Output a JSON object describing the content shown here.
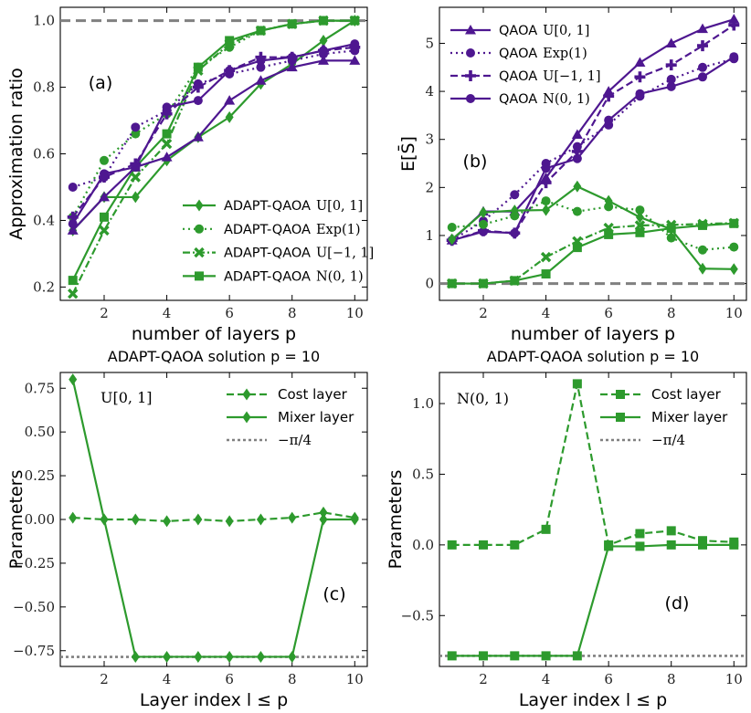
{
  "colors": {
    "green": "#2d9a2d",
    "purple": "#4e1790",
    "gray": "#808080"
  },
  "chart_data": [
    {
      "id": "a",
      "type": "line",
      "panel_label": "(a)",
      "title": "",
      "xlabel": "number of layers p",
      "ylabel": "Approximation ratio",
      "xlim": [
        0.6,
        10.4
      ],
      "ylim": [
        0.16,
        1.04
      ],
      "xticks": [
        2,
        4,
        6,
        8,
        10
      ],
      "xtick_labels": [
        "2",
        "4",
        "6",
        "8",
        "10"
      ],
      "yticks": [
        0.2,
        0.4,
        0.6,
        0.8,
        1.0
      ],
      "ytick_labels": [
        "0.2",
        "0.4",
        "0.6",
        "0.8",
        "1.0"
      ],
      "hlines": [
        {
          "y": 1.0,
          "style": "dashed",
          "color": "#808080"
        }
      ],
      "legend": {
        "position": "lower-right"
      },
      "series": [
        {
          "name": "ADAPT-QAOA",
          "dist": "U[0, 1]",
          "color": "#2d9a2d",
          "dash": "solid",
          "marker": "diamond",
          "legend": true,
          "x": [
            1,
            2,
            3,
            4,
            5,
            6,
            7,
            8,
            9,
            10
          ],
          "values": [
            0.37,
            0.47,
            0.47,
            0.58,
            0.65,
            0.71,
            0.81,
            0.87,
            0.94,
            1.0
          ]
        },
        {
          "name": "ADAPT-QAOA",
          "dist": "Exp(1)",
          "color": "#2d9a2d",
          "dash": "dotted",
          "marker": "circle",
          "legend": true,
          "x": [
            1,
            2,
            3,
            4,
            5,
            6,
            7,
            8,
            9,
            10
          ],
          "values": [
            0.41,
            0.58,
            0.66,
            0.72,
            0.86,
            0.92,
            0.97,
            0.99,
            1.0,
            1.0
          ]
        },
        {
          "name": "ADAPT-QAOA",
          "dist": "U[−1, 1]",
          "color": "#2d9a2d",
          "dash": "dashdot",
          "marker": "x",
          "legend": true,
          "x": [
            1,
            2,
            3,
            4,
            5,
            6,
            7,
            8,
            9,
            10
          ],
          "values": [
            0.18,
            0.37,
            0.53,
            0.63,
            0.85,
            0.93,
            0.97,
            0.99,
            1.0,
            1.0
          ]
        },
        {
          "name": "ADAPT-QAOA",
          "dist": "N(0, 1)",
          "color": "#2d9a2d",
          "dash": "solid",
          "marker": "square",
          "legend": true,
          "x": [
            1,
            2,
            3,
            4,
            5,
            6,
            7,
            8,
            9,
            10
          ],
          "values": [
            0.22,
            0.41,
            0.56,
            0.66,
            0.86,
            0.94,
            0.97,
            0.99,
            1.0,
            1.0
          ]
        },
        {
          "name": "QAOA",
          "dist": "U[0, 1]",
          "color": "#4e1790",
          "dash": "solid",
          "marker": "triangle",
          "legend": false,
          "x": [
            1,
            2,
            3,
            4,
            5,
            6,
            7,
            8,
            9,
            10
          ],
          "values": [
            0.37,
            0.47,
            0.56,
            0.59,
            0.65,
            0.76,
            0.82,
            0.86,
            0.88,
            0.88
          ]
        },
        {
          "name": "QAOA",
          "dist": "Exp(1)",
          "color": "#4e1790",
          "dash": "dotted",
          "marker": "circle",
          "legend": false,
          "x": [
            1,
            2,
            3,
            4,
            5,
            6,
            7,
            8,
            9,
            10
          ],
          "values": [
            0.5,
            0.53,
            0.68,
            0.73,
            0.81,
            0.84,
            0.86,
            0.88,
            0.9,
            0.91
          ]
        },
        {
          "name": "QAOA",
          "dist": "U[−1, 1]",
          "color": "#4e1790",
          "dash": "dashed",
          "marker": "plus",
          "legend": false,
          "x": [
            1,
            2,
            3,
            4,
            5,
            6,
            7,
            8,
            9,
            10
          ],
          "values": [
            0.41,
            0.53,
            0.57,
            0.72,
            0.8,
            0.85,
            0.89,
            0.89,
            0.91,
            0.92
          ]
        },
        {
          "name": "QAOA",
          "dist": "N(0, 1)",
          "color": "#4e1790",
          "dash": "solid",
          "marker": "circle",
          "legend": false,
          "x": [
            1,
            2,
            3,
            4,
            5,
            6,
            7,
            8,
            9,
            10
          ],
          "values": [
            0.39,
            0.54,
            0.56,
            0.74,
            0.76,
            0.85,
            0.88,
            0.89,
            0.91,
            0.93
          ]
        }
      ]
    },
    {
      "id": "b",
      "type": "line",
      "panel_label": "(b)",
      "title": "",
      "xlabel": "number of layers p",
      "ylabel": "E[S̄]",
      "xlim": [
        0.6,
        10.4
      ],
      "ylim": [
        -0.35,
        5.75
      ],
      "xticks": [
        2,
        4,
        6,
        8,
        10
      ],
      "xtick_labels": [
        "2",
        "4",
        "6",
        "8",
        "10"
      ],
      "yticks": [
        0,
        1,
        2,
        3,
        4,
        5
      ],
      "ytick_labels": [
        "0",
        "1",
        "2",
        "3",
        "4",
        "5"
      ],
      "hlines": [
        {
          "y": 0,
          "style": "dashed",
          "color": "#808080"
        }
      ],
      "legend": {
        "position": "top-left"
      },
      "series": [
        {
          "name": "QAOA",
          "dist": "U[0, 1]",
          "color": "#4e1790",
          "dash": "solid",
          "marker": "triangle",
          "legend": true,
          "x": [
            1,
            2,
            3,
            4,
            5,
            6,
            7,
            8,
            9,
            10
          ],
          "values": [
            0.9,
            1.5,
            1.5,
            2.2,
            3.1,
            4.0,
            4.6,
            5.0,
            5.3,
            5.5
          ]
        },
        {
          "name": "QAOA",
          "dist": "Exp(1)",
          "color": "#4e1790",
          "dash": "dotted",
          "marker": "circle",
          "legend": true,
          "x": [
            1,
            2,
            3,
            4,
            5,
            6,
            7,
            8,
            9,
            10
          ],
          "values": [
            0.9,
            1.3,
            1.85,
            2.5,
            2.85,
            3.3,
            3.9,
            4.25,
            4.5,
            4.68
          ]
        },
        {
          "name": "QAOA",
          "dist": "U[−1, 1]",
          "color": "#4e1790",
          "dash": "dashed",
          "marker": "plus",
          "legend": true,
          "x": [
            1,
            2,
            3,
            4,
            5,
            6,
            7,
            8,
            9,
            10
          ],
          "values": [
            0.9,
            1.1,
            1.05,
            2.1,
            2.75,
            3.9,
            4.3,
            4.55,
            4.95,
            5.38
          ]
        },
        {
          "name": "QAOA",
          "dist": "N(0, 1)",
          "color": "#4e1790",
          "dash": "solid",
          "marker": "circle",
          "legend": true,
          "x": [
            1,
            2,
            3,
            4,
            5,
            6,
            7,
            8,
            9,
            10
          ],
          "values": [
            0.9,
            1.08,
            1.05,
            2.4,
            2.6,
            3.4,
            3.95,
            4.1,
            4.3,
            4.72
          ]
        },
        {
          "name": "ADAPT-QAOA",
          "dist": "U[0, 1]",
          "color": "#2d9a2d",
          "dash": "solid",
          "marker": "diamond",
          "legend": false,
          "x": [
            1,
            2,
            3,
            4,
            5,
            6,
            7,
            8,
            9,
            10
          ],
          "values": [
            0.92,
            1.48,
            1.52,
            1.53,
            2.02,
            1.72,
            1.38,
            1.13,
            0.31,
            0.3
          ]
        },
        {
          "name": "ADAPT-QAOA",
          "dist": "Exp(1)",
          "color": "#2d9a2d",
          "dash": "dotted",
          "marker": "circle",
          "legend": false,
          "x": [
            1,
            2,
            3,
            4,
            5,
            6,
            7,
            8,
            9,
            10
          ],
          "values": [
            1.17,
            1.23,
            1.41,
            1.72,
            1.5,
            1.6,
            1.53,
            0.95,
            0.7,
            0.76
          ]
        },
        {
          "name": "ADAPT-QAOA",
          "dist": "U[−1, 1]",
          "color": "#2d9a2d",
          "dash": "dashdot",
          "marker": "x",
          "legend": false,
          "x": [
            1,
            2,
            3,
            4,
            5,
            6,
            7,
            8,
            9,
            10
          ],
          "values": [
            0.0,
            0.0,
            0.06,
            0.55,
            0.88,
            1.16,
            1.21,
            1.22,
            1.24,
            1.26
          ]
        },
        {
          "name": "ADAPT-QAOA",
          "dist": "N(0, 1)",
          "color": "#2d9a2d",
          "dash": "solid",
          "marker": "square",
          "legend": false,
          "x": [
            1,
            2,
            3,
            4,
            5,
            6,
            7,
            8,
            9,
            10
          ],
          "values": [
            0.0,
            0.0,
            0.06,
            0.2,
            0.75,
            1.02,
            1.06,
            1.15,
            1.21,
            1.25
          ]
        }
      ]
    },
    {
      "id": "c",
      "type": "line",
      "panel_label": "(c)",
      "title": "ADAPT-QAOA solution p = 10",
      "annotation": "U[0, 1]",
      "xlabel": "Layer index l ≤ p",
      "ylabel": "Parameters",
      "xlim": [
        0.6,
        10.4
      ],
      "ylim": [
        -0.84,
        0.84
      ],
      "xticks": [
        2,
        4,
        6,
        8,
        10
      ],
      "xtick_labels": [
        "2",
        "4",
        "6",
        "8",
        "10"
      ],
      "yticks": [
        0.75,
        0.5,
        0.25,
        0.0,
        -0.25,
        -0.5,
        -0.75
      ],
      "ytick_labels": [
        "0.75",
        "0.50",
        "0.25",
        "0.00",
        "−0.25",
        "−0.50",
        "−0.75"
      ],
      "hlines": [
        {
          "y": -0.7854,
          "style": "dotted",
          "color": "#808080"
        }
      ],
      "legend": {
        "position": "top-right"
      },
      "legend_entries": [
        "Cost layer",
        "Mixer layer",
        "−π/4"
      ],
      "series": [
        {
          "name": "Cost layer",
          "color": "#2d9a2d",
          "dash": "dashed",
          "marker": "diamond",
          "x": [
            1,
            2,
            3,
            4,
            5,
            6,
            7,
            8,
            9,
            10
          ],
          "values": [
            0.01,
            0.0,
            0.0,
            -0.01,
            0.0,
            -0.01,
            0.0,
            0.01,
            0.04,
            0.01
          ]
        },
        {
          "name": "Mixer layer",
          "color": "#2d9a2d",
          "dash": "solid",
          "marker": "diamond",
          "x": [
            1,
            2,
            3,
            4,
            5,
            6,
            7,
            8,
            9,
            10
          ],
          "values": [
            0.8,
            0.0,
            -0.785,
            -0.785,
            -0.785,
            -0.785,
            -0.785,
            -0.785,
            0.0,
            0.0
          ]
        }
      ]
    },
    {
      "id": "d",
      "type": "line",
      "panel_label": "(d)",
      "title": "ADAPT-QAOA solution p = 10",
      "annotation": "N(0, 1)",
      "xlabel": "Layer index l ≤ p",
      "ylabel": "Parameters",
      "xlim": [
        0.6,
        10.4
      ],
      "ylim": [
        -0.86,
        1.22
      ],
      "xticks": [
        2,
        4,
        6,
        8,
        10
      ],
      "xtick_labels": [
        "2",
        "4",
        "6",
        "8",
        "10"
      ],
      "yticks": [
        1.0,
        0.5,
        0.0,
        -0.5
      ],
      "ytick_labels": [
        "1.0",
        "0.5",
        "0.0",
        "−0.5"
      ],
      "hlines": [
        {
          "y": -0.7854,
          "style": "dotted",
          "color": "#808080"
        }
      ],
      "legend": {
        "position": "top-right"
      },
      "legend_entries": [
        "Cost layer",
        "Mixer layer",
        "−π/4"
      ],
      "series": [
        {
          "name": "Cost layer",
          "color": "#2d9a2d",
          "dash": "dashed",
          "marker": "square",
          "x": [
            1,
            2,
            3,
            4,
            5,
            6,
            7,
            8,
            9,
            10
          ],
          "values": [
            0.0,
            0.0,
            0.0,
            0.11,
            1.14,
            0.0,
            0.08,
            0.1,
            0.03,
            0.02
          ]
        },
        {
          "name": "Mixer layer",
          "color": "#2d9a2d",
          "dash": "solid",
          "marker": "square",
          "x": [
            1,
            2,
            3,
            4,
            5,
            6,
            7,
            8,
            9,
            10
          ],
          "values": [
            -0.785,
            -0.785,
            -0.785,
            -0.785,
            -0.785,
            -0.01,
            -0.01,
            0.0,
            0.0,
            0.0
          ]
        }
      ]
    }
  ]
}
